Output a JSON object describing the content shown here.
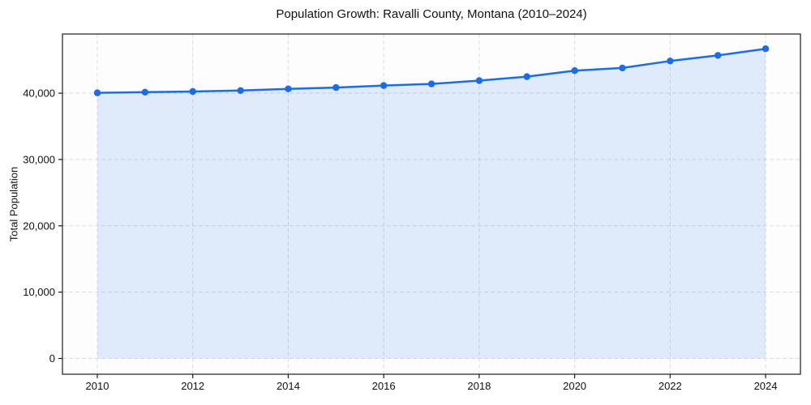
{
  "chart_data": {
    "type": "area",
    "title": "Population Growth: Ravalli County, Montana (2010–2024)",
    "xlabel": "",
    "ylabel": "Total Population",
    "x": [
      2010,
      2011,
      2012,
      2013,
      2014,
      2015,
      2016,
      2017,
      2018,
      2019,
      2020,
      2021,
      2022,
      2023,
      2024
    ],
    "series": [
      {
        "name": "Total Population",
        "values": [
          40050,
          40150,
          40250,
          40400,
          40650,
          40850,
          41150,
          41400,
          41900,
          42500,
          43400,
          43800,
          44850,
          45700,
          46700
        ]
      }
    ],
    "xticks": [
      2010,
      2012,
      2014,
      2016,
      2018,
      2020,
      2022,
      2024
    ],
    "xtick_labels": [
      "2010",
      "2012",
      "2014",
      "2016",
      "2018",
      "2020",
      "2022",
      "2024"
    ],
    "yticks": [
      0,
      10000,
      20000,
      30000,
      40000
    ],
    "ytick_labels": [
      "0",
      "10,000",
      "20,000",
      "30,000",
      "40,000"
    ],
    "xlim": [
      2009.27,
      2024.73
    ],
    "ylim": [
      -2380,
      48920
    ],
    "grid": true,
    "legend": "none",
    "fill_baseline": 0,
    "colors": {
      "line": "#1a6ce8",
      "marker": "#1a6ce8",
      "fill": "rgba(26,108,232,0.13)",
      "grid": "#d9dde1",
      "spine": "#1c1c1c",
      "axes_background": "#fdfdfe",
      "figure_background": "#ffffff",
      "text": "#111111"
    }
  }
}
